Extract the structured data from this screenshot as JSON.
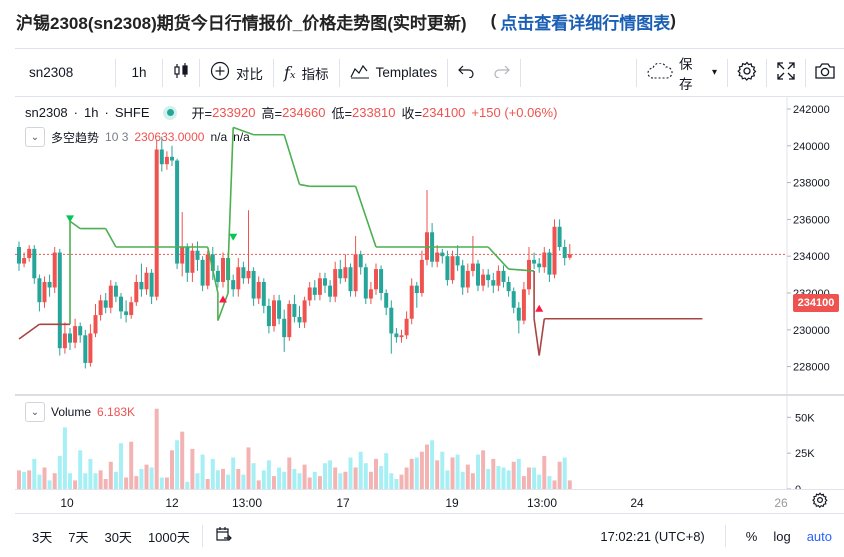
{
  "page_header": {
    "title": "沪锡2308(sn2308)期货今日行情报价_价格走势图(实时更新)",
    "paren_open": "(",
    "link": "点击查看详细行情图表",
    "paren_close": ")"
  },
  "toolbar": {
    "symbol": "sn2308",
    "interval": "1h",
    "compare_label": "对比",
    "indicators_label": "指标",
    "templates_label": "Templates",
    "save_label": "保存"
  },
  "legend": {
    "symbol": "sn2308",
    "interval": "1h",
    "exchange": "SHFE",
    "open_label": "开=",
    "open": "233920",
    "high_label": "高=",
    "high": "234660",
    "low_label": "低=",
    "low": "233810",
    "close_label": "收=",
    "close": "234100",
    "change": "+150 (+0.06%)"
  },
  "indicator": {
    "name": "多空趋势",
    "params": "10 3",
    "value": "230633.0000",
    "na1": "n/a",
    "na2": "n/a"
  },
  "volume": {
    "label": "Volume",
    "value": "6.183K"
  },
  "price_axis": {
    "ticks": [
      "242000",
      "240000",
      "238000",
      "236000",
      "234000",
      "232000",
      "230000",
      "228000"
    ],
    "last_price": "234100"
  },
  "volume_axis": {
    "ticks": [
      "50K",
      "25K",
      "0"
    ]
  },
  "time_axis": {
    "ticks": [
      "10",
      "12",
      "13:00",
      "17",
      "19",
      "13:00",
      "24",
      "26"
    ]
  },
  "bottom_bar": {
    "ranges": [
      "3天",
      "7天",
      "30天",
      "1000天"
    ],
    "time": "17:02:21 (UTC+8)",
    "percent": "%",
    "log": "log",
    "auto": "auto"
  },
  "colors": {
    "up": "#26a69a",
    "down": "#ef5350",
    "vol_up": "#a6f0f5",
    "vol_down": "#f4b3b3",
    "trend_up": "#4caf50",
    "trend_down": "#a94442"
  },
  "chart_data": {
    "type": "candlestick",
    "ylim": [
      227000,
      243000
    ],
    "candles": [
      [
        234500,
        233600,
        234800,
        233200
      ],
      [
        233600,
        233900,
        234200,
        233400
      ],
      [
        233900,
        234400,
        234600,
        233700
      ],
      [
        234400,
        232800,
        234600,
        232500
      ],
      [
        232800,
        231500,
        233000,
        231000
      ],
      [
        231500,
        232600,
        232900,
        231200
      ],
      [
        232600,
        232300,
        233000,
        231800
      ],
      [
        232300,
        234200,
        234500,
        232000
      ],
      [
        234200,
        229000,
        234400,
        228600
      ],
      [
        229000,
        229800,
        230400,
        228700
      ],
      [
        229800,
        229300,
        230100,
        228900
      ],
      [
        229300,
        230200,
        230600,
        229000
      ],
      [
        230200,
        229700,
        230400,
        229300
      ],
      [
        229700,
        228200,
        230000,
        227900
      ],
      [
        228200,
        229800,
        230300,
        228000
      ],
      [
        229800,
        230800,
        231400,
        229600
      ],
      [
        230800,
        231600,
        231900,
        230500
      ],
      [
        231600,
        231200,
        232000,
        230900
      ],
      [
        231200,
        232400,
        232700,
        230900
      ],
      [
        232400,
        231800,
        232600,
        231500
      ],
      [
        231800,
        231000,
        232000,
        230600
      ],
      [
        231000,
        230800,
        231600,
        230400
      ],
      [
        230800,
        231500,
        231800,
        230600
      ],
      [
        231500,
        232600,
        233000,
        231300
      ],
      [
        232600,
        232200,
        233600,
        231800
      ],
      [
        232200,
        233100,
        233400,
        231900
      ],
      [
        233100,
        231800,
        233300,
        231400
      ],
      [
        231800,
        239800,
        240300,
        231600
      ],
      [
        239800,
        239000,
        240500,
        238600
      ],
      [
        239000,
        239400,
        239700,
        238700
      ],
      [
        239400,
        239200,
        240000,
        238900
      ],
      [
        239200,
        233600,
        239300,
        233300
      ],
      [
        233600,
        234500,
        236400,
        232900
      ],
      [
        234500,
        233100,
        234700,
        232600
      ],
      [
        233100,
        234300,
        234700,
        232600
      ],
      [
        234300,
        233800,
        234800,
        233200
      ],
      [
        233800,
        232400,
        234000,
        232100
      ],
      [
        232400,
        234100,
        234300,
        232200
      ],
      [
        234100,
        233200,
        234500,
        232700
      ],
      [
        233200,
        232600,
        233500,
        232300
      ],
      [
        232600,
        233900,
        234200,
        232300
      ],
      [
        233900,
        232700,
        234200,
        232400
      ],
      [
        232700,
        232200,
        233000,
        231800
      ],
      [
        232200,
        233400,
        233900,
        231800
      ],
      [
        233400,
        232800,
        233700,
        232500
      ],
      [
        232800,
        233200,
        236500,
        232500
      ],
      [
        233200,
        231700,
        233400,
        231300
      ],
      [
        231700,
        232600,
        232900,
        231400
      ],
      [
        232600,
        231300,
        232800,
        230900
      ],
      [
        231300,
        230200,
        231700,
        229800
      ],
      [
        230200,
        231600,
        231900,
        229900
      ],
      [
        231600,
        230600,
        231900,
        230300
      ],
      [
        230600,
        229600,
        231100,
        228800
      ],
      [
        229600,
        231400,
        231600,
        229400
      ],
      [
        231400,
        230700,
        231900,
        230400
      ],
      [
        230700,
        230400,
        231300,
        230100
      ],
      [
        230400,
        231600,
        231800,
        230100
      ],
      [
        231600,
        232300,
        232600,
        231300
      ],
      [
        232300,
        231900,
        232700,
        231600
      ],
      [
        231900,
        232800,
        233100,
        231600
      ],
      [
        232800,
        232400,
        233100,
        232000
      ],
      [
        232400,
        231800,
        232700,
        231500
      ],
      [
        231800,
        233300,
        233700,
        231500
      ],
      [
        233300,
        232800,
        233800,
        232500
      ],
      [
        232800,
        233400,
        234100,
        232600
      ],
      [
        233400,
        232100,
        233600,
        231800
      ],
      [
        232100,
        234100,
        235100,
        231800
      ],
      [
        234100,
        233400,
        234300,
        233000
      ],
      [
        233400,
        231700,
        233600,
        231400
      ],
      [
        231700,
        232200,
        232600,
        231400
      ],
      [
        232200,
        233300,
        233600,
        231900
      ],
      [
        233300,
        232000,
        233500,
        231600
      ],
      [
        232000,
        231200,
        232200,
        230800
      ],
      [
        231200,
        229800,
        231600,
        228700
      ],
      [
        229800,
        229600,
        230100,
        229300
      ],
      [
        229600,
        229700,
        230000,
        229300
      ],
      [
        229700,
        230600,
        231000,
        229500
      ],
      [
        230600,
        232400,
        232800,
        230300
      ],
      [
        232400,
        232000,
        232600,
        231200
      ],
      [
        232000,
        233800,
        234300,
        231800
      ],
      [
        233800,
        235300,
        237600,
        233500
      ],
      [
        235300,
        233700,
        235800,
        233400
      ],
      [
        233700,
        234200,
        234600,
        233400
      ],
      [
        234200,
        234000,
        234400,
        233600
      ],
      [
        234000,
        232700,
        234300,
        232400
      ],
      [
        232700,
        234000,
        234300,
        232500
      ],
      [
        234000,
        233500,
        234600,
        233200
      ],
      [
        233500,
        232300,
        233800,
        231900
      ],
      [
        232300,
        233200,
        233600,
        232000
      ],
      [
        233200,
        233600,
        235100,
        232900
      ],
      [
        233600,
        232400,
        233800,
        232100
      ],
      [
        232400,
        233000,
        233300,
        232100
      ],
      [
        233000,
        232700,
        233300,
        232300
      ],
      [
        232700,
        232400,
        233100,
        232000
      ],
      [
        232400,
        233200,
        233500,
        232100
      ],
      [
        233200,
        232600,
        233500,
        232300
      ],
      [
        232600,
        232100,
        232900,
        231800
      ],
      [
        232100,
        231200,
        232300,
        230900
      ],
      [
        231200,
        230500,
        231500,
        229800
      ],
      [
        230500,
        232200,
        232600,
        230300
      ],
      [
        232200,
        233800,
        234500,
        231900
      ],
      [
        233800,
        233600,
        234200,
        233300
      ],
      [
        233600,
        233400,
        233900,
        233100
      ],
      [
        233400,
        234200,
        234500,
        233100
      ],
      [
        234200,
        233000,
        234400,
        232600
      ],
      [
        233000,
        235600,
        236000,
        232800
      ],
      [
        235600,
        234500,
        236000,
        234300
      ],
      [
        234500,
        233900,
        234900,
        233500
      ],
      [
        233920,
        234100,
        234660,
        233810
      ]
    ],
    "volumes": [
      [
        13,
        0
      ],
      [
        12,
        1
      ],
      [
        13,
        0
      ],
      [
        21,
        1
      ],
      [
        10,
        1
      ],
      [
        15,
        0
      ],
      [
        6,
        1
      ],
      [
        11,
        0
      ],
      [
        23,
        1
      ],
      [
        43,
        1
      ],
      [
        11,
        1
      ],
      [
        6,
        0
      ],
      [
        27,
        1
      ],
      [
        11,
        1
      ],
      [
        21,
        1
      ],
      [
        11,
        1
      ],
      [
        13,
        0
      ],
      [
        7,
        0
      ],
      [
        19,
        0
      ],
      [
        12,
        1
      ],
      [
        32,
        1
      ],
      [
        8,
        0
      ],
      [
        33,
        0
      ],
      [
        9,
        0
      ],
      [
        14,
        1
      ],
      [
        17,
        0
      ],
      [
        15,
        1
      ],
      [
        56,
        0
      ],
      [
        8,
        1
      ],
      [
        8,
        0
      ],
      [
        27,
        0
      ],
      [
        34,
        1
      ],
      [
        40,
        0
      ],
      [
        5,
        1
      ],
      [
        28,
        0
      ],
      [
        11,
        1
      ],
      [
        24,
        1
      ],
      [
        7,
        0
      ],
      [
        21,
        1
      ],
      [
        13,
        1
      ],
      [
        14,
        0
      ],
      [
        10,
        1
      ],
      [
        22,
        1
      ],
      [
        14,
        0
      ],
      [
        10,
        1
      ],
      [
        29,
        0
      ],
      [
        18,
        1
      ],
      [
        6,
        0
      ],
      [
        13,
        1
      ],
      [
        20,
        1
      ],
      [
        9,
        0
      ],
      [
        15,
        1
      ],
      [
        12,
        1
      ],
      [
        22,
        0
      ],
      [
        14,
        1
      ],
      [
        11,
        1
      ],
      [
        17,
        0
      ],
      [
        8,
        0
      ],
      [
        12,
        1
      ],
      [
        9,
        0
      ],
      [
        18,
        1
      ],
      [
        20,
        1
      ],
      [
        15,
        0
      ],
      [
        11,
        1
      ],
      [
        12,
        0
      ],
      [
        22,
        1
      ],
      [
        15,
        0
      ],
      [
        26,
        1
      ],
      [
        18,
        1
      ],
      [
        12,
        0
      ],
      [
        21,
        0
      ],
      [
        16,
        1
      ],
      [
        25,
        1
      ],
      [
        11,
        1
      ],
      [
        7,
        1
      ],
      [
        10,
        0
      ],
      [
        15,
        0
      ],
      [
        21,
        0
      ],
      [
        22,
        1
      ],
      [
        26,
        0
      ],
      [
        31,
        0
      ],
      [
        34,
        1
      ],
      [
        20,
        0
      ],
      [
        26,
        1
      ],
      [
        13,
        1
      ],
      [
        22,
        0
      ],
      [
        24,
        1
      ],
      [
        12,
        1
      ],
      [
        17,
        0
      ],
      [
        11,
        0
      ],
      [
        24,
        1
      ],
      [
        27,
        0
      ],
      [
        14,
        1
      ],
      [
        21,
        0
      ],
      [
        16,
        1
      ],
      [
        15,
        1
      ],
      [
        13,
        1
      ],
      [
        19,
        0
      ],
      [
        21,
        1
      ],
      [
        9,
        0
      ],
      [
        15,
        0
      ],
      [
        15,
        1
      ],
      [
        10,
        1
      ],
      [
        23,
        0
      ],
      [
        9,
        1
      ],
      [
        6,
        0
      ],
      [
        19,
        0
      ],
      [
        22,
        1
      ],
      [
        6,
        0
      ]
    ],
    "trend_line": [
      [
        0,
        229500
      ],
      [
        4,
        230300
      ],
      [
        10,
        230300
      ],
      [
        10,
        235900
      ],
      [
        12,
        235500
      ],
      [
        17,
        235500
      ],
      [
        19,
        234500
      ],
      [
        37,
        234500
      ],
      [
        39,
        232000
      ],
      [
        39,
        230500
      ],
      [
        41,
        232000
      ],
      [
        41,
        233500
      ],
      [
        42,
        241000
      ],
      [
        46,
        240600
      ],
      [
        52,
        240600
      ],
      [
        55,
        237900
      ],
      [
        57,
        237800
      ],
      [
        66,
        237800
      ],
      [
        70,
        234500
      ],
      [
        92,
        234500
      ],
      [
        96,
        233300
      ],
      [
        101,
        233200
      ],
      [
        101,
        230600
      ],
      [
        102,
        228600
      ],
      [
        103,
        230600
      ],
      [
        134,
        230600
      ]
    ],
    "markers": [
      {
        "type": "buy",
        "index": 10,
        "price": 236000
      },
      {
        "type": "sell",
        "index": 40,
        "price": 231700
      },
      {
        "type": "buy",
        "index": 42,
        "price": 235000
      },
      {
        "type": "sell",
        "index": 102,
        "price": 231200
      }
    ],
    "hlines": [
      234100
    ]
  }
}
